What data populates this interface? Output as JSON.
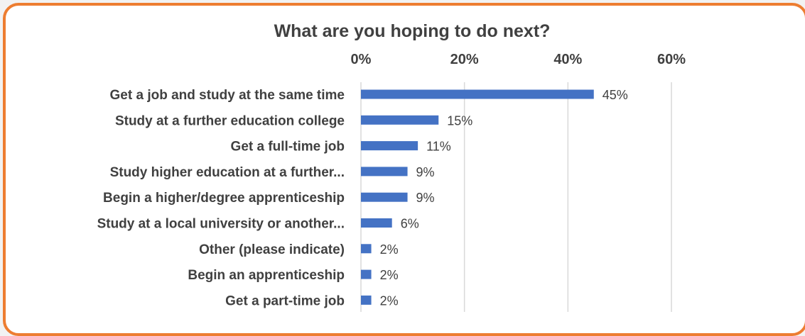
{
  "chart_data": {
    "type": "bar",
    "orientation": "horizontal",
    "title": "What are you hoping to do next?",
    "categories": [
      "Get a job and study at the same time",
      "Study at a further education college",
      "Get a full-time job",
      "Study higher education at a further...",
      "Begin a higher/degree apprenticeship",
      "Study at a local university or another...",
      "Other (please indicate)",
      "Begin an apprenticeship",
      "Get a part-time job"
    ],
    "values": [
      45,
      15,
      11,
      9,
      9,
      6,
      2,
      2,
      2
    ],
    "data_labels": [
      "45%",
      "15%",
      "11%",
      "9%",
      "9%",
      "6%",
      "2%",
      "2%",
      "2%"
    ],
    "x_ticks": [
      "0%",
      "20%",
      "40%",
      "60%"
    ],
    "xlim": [
      0,
      60
    ],
    "x_axis_position": "top",
    "grid": true,
    "bar_color": "#4472c4",
    "border_color": "#ed7d31"
  }
}
